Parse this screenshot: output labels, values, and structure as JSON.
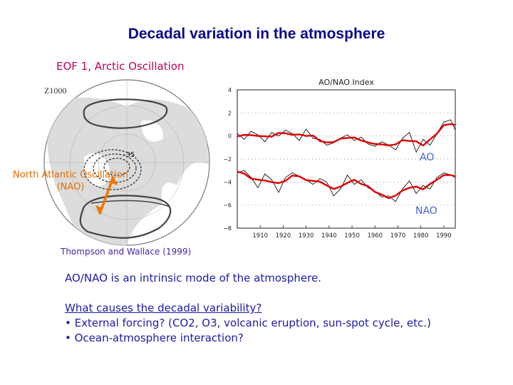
{
  "slide": {
    "title": "Decadal variation in the atmosphere",
    "eof_label": "EOF 1, Arctic Oscillation",
    "map_label": "Z1000",
    "contour_value": "-35",
    "nao_label_line1": "North Atlantic Oscillation",
    "nao_label_line2": "(NAO)",
    "citation": "Thompson and Wallace (1999)",
    "statement": "AO/NAO is an intrinsic mode of the atmosphere.",
    "question": "What causes the decadal variability?",
    "bullets": [
      "• External forcing? (CO2, O3, volcanic eruption, sun-spot cycle, etc.)",
      "• Ocean-atmosphere interaction?"
    ],
    "colors": {
      "title": "#0a0a8c",
      "eof": "#c0005a",
      "nao": "#e86c00",
      "body": "#1b1ba8",
      "smooth": "#e00000"
    }
  },
  "chart_data": {
    "type": "line",
    "title": "AO/NAO Index",
    "xlim": [
      1900,
      1995
    ],
    "ylim": [
      -8,
      4
    ],
    "x_ticks": [
      1910,
      1920,
      1930,
      1940,
      1950,
      1960,
      1970,
      1980,
      1990
    ],
    "y_ticks": [
      4,
      2,
      0,
      -2,
      -4,
      -6,
      -8
    ],
    "y_tick_labels": [
      "4",
      "2",
      "0",
      "−2",
      "−4",
      "−6",
      "−8"
    ],
    "grid": "dotted",
    "series": [
      {
        "name": "AO",
        "x": [
          1900,
          1903,
          1906,
          1909,
          1912,
          1915,
          1918,
          1921,
          1924,
          1927,
          1930,
          1933,
          1936,
          1939,
          1942,
          1945,
          1948,
          1951,
          1954,
          1957,
          1960,
          1963,
          1966,
          1969,
          1972,
          1975,
          1978,
          1981,
          1984,
          1987,
          1990,
          1993,
          1995
        ],
        "values": [
          0.2,
          -0.3,
          0.4,
          0.1,
          -0.5,
          0.3,
          0.0,
          0.5,
          0.2,
          -0.4,
          0.6,
          -0.2,
          -0.3,
          -0.8,
          -0.6,
          -0.2,
          0.1,
          -0.4,
          -0.1,
          -0.7,
          -0.9,
          -0.5,
          -0.8,
          -1.2,
          -0.2,
          0.3,
          -1.4,
          -0.3,
          -0.8,
          0.2,
          1.2,
          1.4,
          0.5
        ]
      },
      {
        "name": "NAO",
        "x": [
          1900,
          1903,
          1906,
          1909,
          1912,
          1915,
          1918,
          1921,
          1924,
          1927,
          1930,
          1933,
          1936,
          1939,
          1942,
          1945,
          1948,
          1951,
          1954,
          1957,
          1960,
          1963,
          1966,
          1969,
          1972,
          1975,
          1978,
          1981,
          1984,
          1987,
          1990,
          1993,
          1995
        ],
        "values": [
          -3.2,
          -3.0,
          -3.6,
          -4.5,
          -3.3,
          -3.8,
          -4.9,
          -3.6,
          -3.2,
          -3.5,
          -3.8,
          -4.2,
          -3.7,
          -4.0,
          -5.2,
          -4.6,
          -3.4,
          -4.2,
          -3.8,
          -4.5,
          -4.8,
          -5.3,
          -5.2,
          -5.7,
          -4.6,
          -3.9,
          -5.0,
          -4.3,
          -4.6,
          -3.6,
          -3.2,
          -3.4,
          -3.6
        ]
      }
    ]
  }
}
